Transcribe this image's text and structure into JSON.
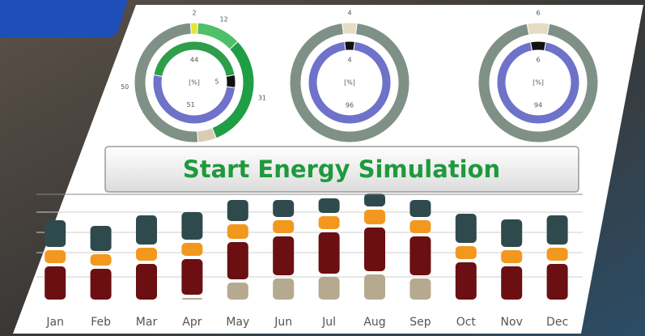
{
  "chart_data": [
    {
      "type": "donut",
      "center_label": "[%]",
      "rings": [
        {
          "values": [
            2,
            12,
            31,
            5,
            50
          ],
          "value_labels": [
            "2",
            "12",
            "31",
            null,
            "50"
          ],
          "colors": [
            "#e8e23a",
            "#4fbf6a",
            "#1f9e45",
            "#d9ccb2",
            "#7f9186"
          ]
        },
        {
          "values": [
            44,
            5,
            51
          ],
          "colors": [
            "#2e9e4a",
            "#111111",
            "#6f72c9"
          ]
        }
      ]
    },
    {
      "type": "donut",
      "center_label": "[%]",
      "rings": [
        {
          "values": [
            4,
            96
          ],
          "value_labels": [
            "4",
            null
          ],
          "colors": [
            "#e6dcc4",
            "#7f9186"
          ]
        },
        {
          "values": [
            4,
            96
          ],
          "colors": [
            "#111111",
            "#6f72c9"
          ]
        }
      ]
    },
    {
      "type": "donut",
      "center_label": "[%]",
      "rings": [
        {
          "values": [
            6,
            94
          ],
          "value_labels": [
            "6",
            null
          ],
          "colors": [
            "#e6dcc4",
            "#7f9186"
          ]
        },
        {
          "values": [
            6,
            94
          ],
          "colors": [
            "#111111",
            "#6f72c9"
          ]
        }
      ]
    },
    {
      "type": "stacked_bar",
      "categories": [
        "Jan",
        "Feb",
        "Mar",
        "Apr",
        "May",
        "Jun",
        "Jul",
        "Aug",
        "Sep",
        "Oct",
        "Nov",
        "Dec"
      ],
      "ylim": [
        0,
        130
      ],
      "series": [
        {
          "color": "#b5aa90",
          "values": [
            0,
            0,
            0,
            6,
            25,
            30,
            32,
            35,
            30,
            0,
            0,
            0
          ]
        },
        {
          "color": "#6b0f12",
          "values": [
            45,
            42,
            48,
            48,
            50,
            52,
            55,
            58,
            52,
            50,
            45,
            48
          ]
        },
        {
          "color": "#f2981f",
          "values": [
            20,
            18,
            20,
            20,
            22,
            20,
            20,
            22,
            20,
            20,
            20,
            20
          ]
        },
        {
          "color": "#2f4a4c",
          "values": [
            37,
            35,
            40,
            38,
            30,
            25,
            22,
            20,
            25,
            40,
            38,
            40
          ]
        }
      ]
    }
  ],
  "button": {
    "label": "Start Energy Simulation"
  }
}
